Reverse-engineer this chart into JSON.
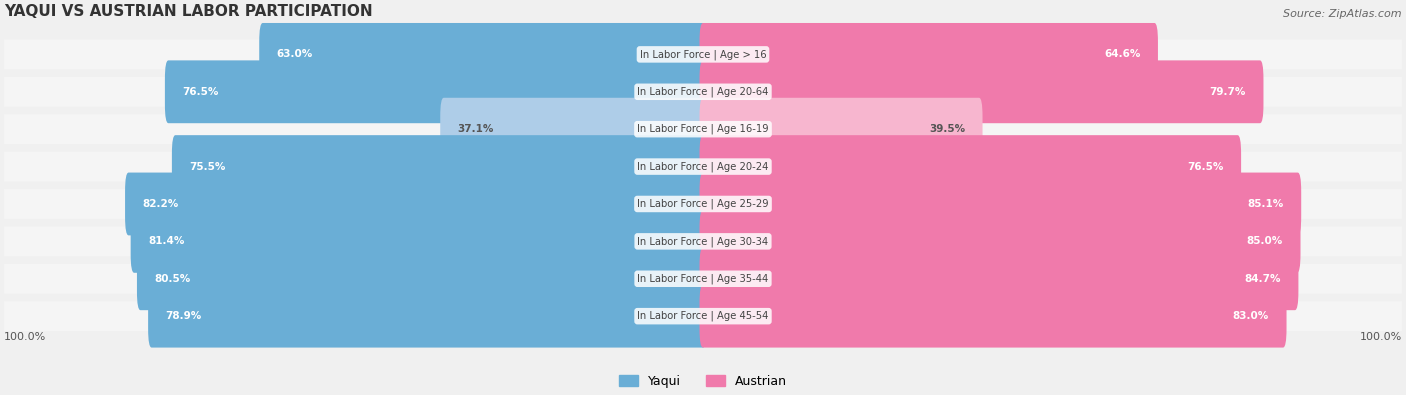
{
  "title": "YAQUI VS AUSTRIAN LABOR PARTICIPATION",
  "source": "Source: ZipAtlas.com",
  "categories": [
    "In Labor Force | Age > 16",
    "In Labor Force | Age 20-64",
    "In Labor Force | Age 16-19",
    "In Labor Force | Age 20-24",
    "In Labor Force | Age 25-29",
    "In Labor Force | Age 30-34",
    "In Labor Force | Age 35-44",
    "In Labor Force | Age 45-54"
  ],
  "yaqui_values": [
    63.0,
    76.5,
    37.1,
    75.5,
    82.2,
    81.4,
    80.5,
    78.9
  ],
  "austrian_values": [
    64.6,
    79.7,
    39.5,
    76.5,
    85.1,
    85.0,
    84.7,
    83.0
  ],
  "yaqui_color": "#6aaed6",
  "yaqui_light_color": "#aecde8",
  "austrian_color": "#f07aab",
  "austrian_light_color": "#f7b6cf",
  "bg_color": "#f0f0f0",
  "bar_bg_color": "#e8e8e8",
  "row_bg_color": "#f5f5f5",
  "label_color_dark": "#555555",
  "label_color_white": "#ffffff",
  "center_label_color": "#444444",
  "max_value": 100.0,
  "legend_yaqui": "Yaqui",
  "legend_austrian": "Austrian"
}
